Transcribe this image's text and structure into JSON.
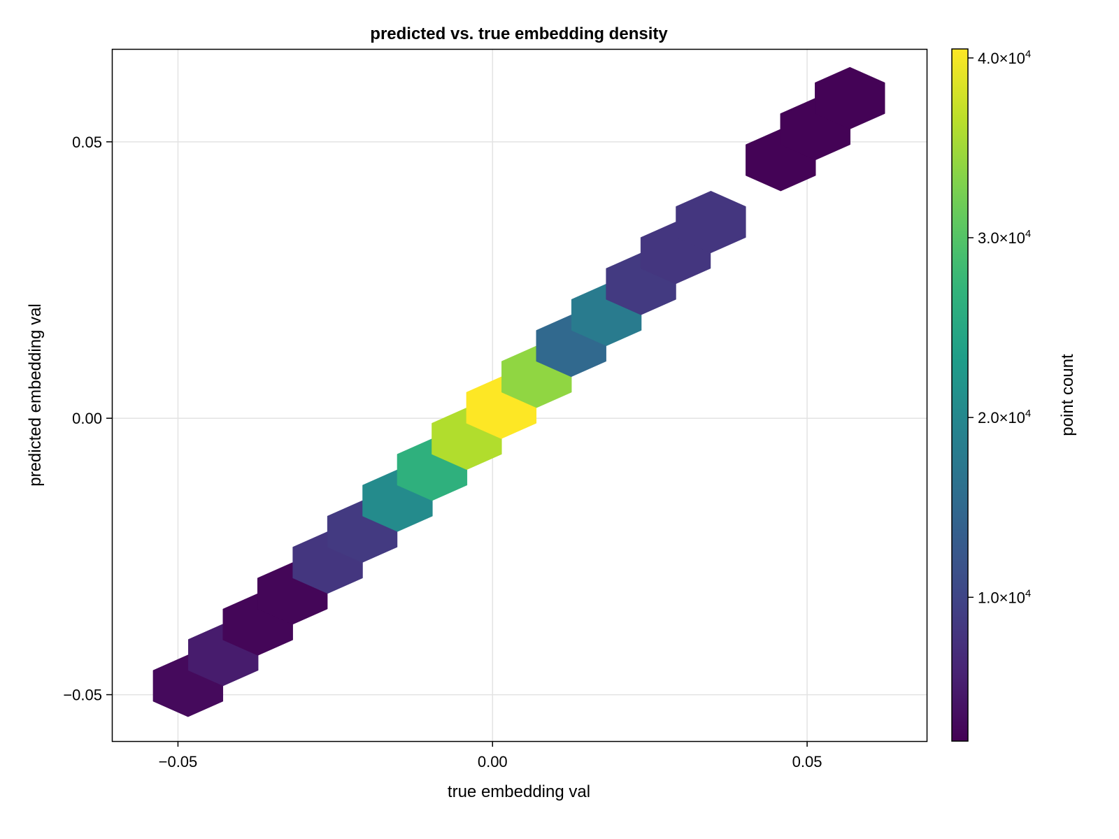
{
  "chart_data": {
    "type": "heatmap",
    "subtype": "hexbin",
    "title": "predicted vs. true embedding density",
    "xlabel": "true embedding val",
    "ylabel": "predicted embedding val",
    "xlim": [
      -0.0605,
      0.069
    ],
    "ylim": [
      -0.0584,
      0.0668
    ],
    "grid": true,
    "xticks": [
      -0.05,
      0.0,
      0.05
    ],
    "xtick_labels": [
      "−0.05",
      "0.00",
      "0.05"
    ],
    "yticks": [
      -0.05,
      0.0,
      0.05
    ],
    "ytick_labels": [
      "−0.05",
      "0.00",
      "0.05"
    ],
    "colormap": "viridis",
    "colorbar": {
      "label": "point count",
      "range": [
        2000,
        40500
      ],
      "ticks": [
        10000,
        20000,
        30000,
        40000
      ],
      "tick_labels": [
        {
          "mantissa": "1.0×10",
          "exponent": "4"
        },
        {
          "mantissa": "2.0×10",
          "exponent": "4"
        },
        {
          "mantissa": "3.0×10",
          "exponent": "4"
        },
        {
          "mantissa": "4.0×10",
          "exponent": "4"
        }
      ]
    },
    "hex_size": {
      "dx": 0.0111,
      "dy": 0.0056
    },
    "bins": [
      {
        "x": -0.0484,
        "y": -0.0484,
        "count": 3000
      },
      {
        "x": -0.0428,
        "y": -0.0428,
        "count": 5000
      },
      {
        "x": -0.0373,
        "y": -0.0373,
        "count": 2500
      },
      {
        "x": -0.0318,
        "y": -0.0317,
        "count": 2500
      },
      {
        "x": -0.0262,
        "y": -0.0261,
        "count": 8000
      },
      {
        "x": -0.0207,
        "y": -0.0205,
        "count": 8500
      },
      {
        "x": -0.0151,
        "y": -0.0149,
        "count": 20500
      },
      {
        "x": -0.0096,
        "y": -0.0093,
        "count": 26500
      },
      {
        "x": -0.0041,
        "y": -0.0037,
        "count": 36000
      },
      {
        "x": 0.0014,
        "y": 0.0019,
        "count": 40500
      },
      {
        "x": 0.007,
        "y": 0.0075,
        "count": 34000
      },
      {
        "x": 0.0125,
        "y": 0.0131,
        "count": 15000
      },
      {
        "x": 0.0181,
        "y": 0.0187,
        "count": 18000
      },
      {
        "x": 0.0236,
        "y": 0.0243,
        "count": 8500
      },
      {
        "x": 0.0291,
        "y": 0.0299,
        "count": 8000
      },
      {
        "x": 0.0347,
        "y": 0.0355,
        "count": 8000
      },
      {
        "x": 0.0458,
        "y": 0.0467,
        "count": 2200
      },
      {
        "x": 0.0513,
        "y": 0.0523,
        "count": 2200
      },
      {
        "x": 0.0568,
        "y": 0.0579,
        "count": 2200
      }
    ]
  }
}
